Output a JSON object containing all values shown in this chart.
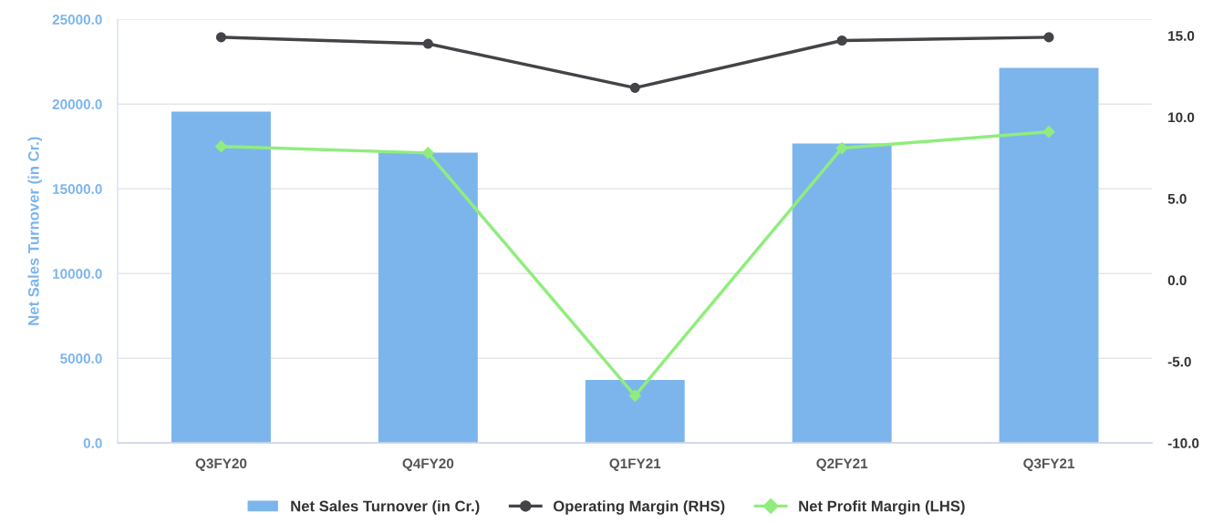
{
  "chart_data": {
    "type": "bar",
    "ylabel": "Net Sales Turnover (in Cr.)",
    "categories": [
      "Q3FY20",
      "Q4FY20",
      "Q1FY21",
      "Q2FY21",
      "Q3FY21"
    ],
    "series": [
      {
        "name": "Net Sales Turnover (in Cr.)",
        "color": "#7cb5ec",
        "values": [
          19550,
          17130,
          3720,
          17670,
          22140
        ]
      },
      {
        "name": "Operating Margin (RHS)",
        "type": "line",
        "axis": "y2",
        "color": "#434348",
        "marker": "circle",
        "values": [
          14.9,
          14.5,
          11.8,
          14.7,
          14.9
        ]
      },
      {
        "name": "Net Profit Margin (LHS)",
        "type": "line",
        "axis": "y2",
        "color": "#90ed7d",
        "marker": "diamond",
        "values": [
          8.2,
          7.8,
          -7.1,
          8.1,
          9.1
        ]
      }
    ],
    "ylim": [
      0,
      25000
    ],
    "yticks": [
      {
        "value": 0,
        "label": "0.0"
      },
      {
        "value": 5000,
        "label": "5000.0"
      },
      {
        "value": 10000,
        "label": "10000.0"
      },
      {
        "value": 15000,
        "label": "15000.0"
      },
      {
        "value": 20000,
        "label": "20000.0"
      },
      {
        "value": 25000,
        "label": "25000.0"
      }
    ],
    "y2lim": [
      -10,
      16
    ],
    "y2ticks": [
      {
        "value": -10,
        "label": "-10.0"
      },
      {
        "value": -5,
        "label": "-5.0"
      },
      {
        "value": 0,
        "label": "0.0"
      },
      {
        "value": 5,
        "label": "5.0"
      },
      {
        "value": 10,
        "label": "10.0"
      },
      {
        "value": 15,
        "label": "15.0"
      }
    ],
    "grid": "y",
    "legend": "bottom"
  }
}
